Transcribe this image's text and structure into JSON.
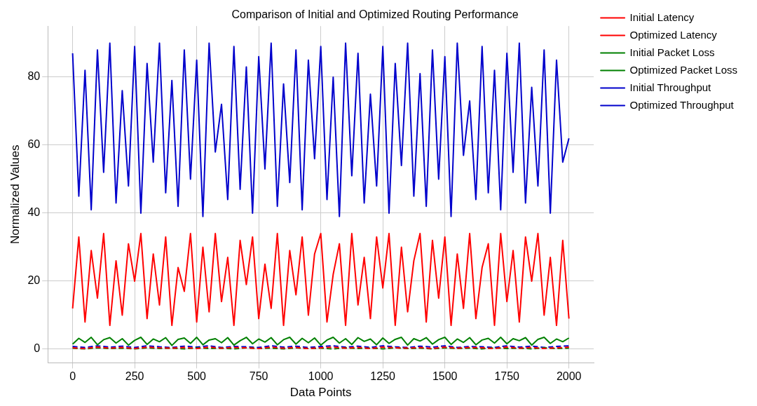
{
  "chart_data": {
    "type": "line",
    "title": "Comparison of Initial and Optimized Routing Performance",
    "xlabel": "Data Points",
    "ylabel": "Normalized Values",
    "xlim": [
      -100,
      2100
    ],
    "xticks": [
      0,
      250,
      500,
      750,
      1000,
      1250,
      1500,
      1750,
      2000
    ],
    "ylim": [
      -4,
      95
    ],
    "yticks": [
      0,
      20,
      40,
      60,
      80
    ],
    "grid": true,
    "legend": "top right",
    "marker": "none",
    "series": [
      {
        "name": "Initial Latency",
        "color": "#ff0000",
        "line_style": "dashed",
        "x": [
          0,
          50,
          100,
          150,
          200,
          250,
          300,
          350,
          400,
          450,
          500,
          550,
          600,
          650,
          700,
          750,
          800,
          850,
          900,
          950,
          1000,
          1050,
          1100,
          1150,
          1200,
          1250,
          1300,
          1350,
          1400,
          1450,
          1500,
          1550,
          1600,
          1650,
          1700,
          1750,
          1800,
          1850,
          1900,
          1950,
          2000
        ],
        "values": [
          0.4,
          0.2,
          0.6,
          0.3,
          0.5,
          0.2,
          0.6,
          0.4,
          0.3,
          0.5,
          0.2,
          0.6,
          0.3,
          0.5,
          0.4,
          0.2,
          0.6,
          0.3,
          0.5,
          0.2,
          0.4,
          0.6,
          0.3,
          0.5,
          0.2,
          0.6,
          0.4,
          0.3,
          0.5,
          0.2,
          0.6,
          0.3,
          0.5,
          0.4,
          0.2,
          0.6,
          0.3,
          0.5,
          0.2,
          0.4,
          0.6
        ]
      },
      {
        "name": "Optimized Latency",
        "color": "#ff0000",
        "line_style": "solid",
        "x": [
          0,
          25,
          50,
          75,
          100,
          125,
          150,
          175,
          200,
          225,
          250,
          275,
          300,
          325,
          350,
          375,
          400,
          425,
          450,
          475,
          500,
          525,
          550,
          575,
          600,
          625,
          650,
          675,
          700,
          725,
          750,
          775,
          800,
          825,
          850,
          875,
          900,
          925,
          950,
          975,
          1000,
          1025,
          1050,
          1075,
          1100,
          1125,
          1150,
          1175,
          1200,
          1225,
          1250,
          1275,
          1300,
          1325,
          1350,
          1375,
          1400,
          1425,
          1450,
          1475,
          1500,
          1525,
          1550,
          1575,
          1600,
          1625,
          1650,
          1675,
          1700,
          1725,
          1750,
          1775,
          1800,
          1825,
          1850,
          1875,
          1900,
          1925,
          1950,
          1975,
          2000
        ],
        "values": [
          12,
          33,
          8,
          29,
          15,
          34,
          7,
          26,
          10,
          31,
          20,
          34,
          9,
          28,
          13,
          33,
          7,
          24,
          17,
          34,
          8,
          30,
          11,
          34,
          14,
          27,
          7,
          32,
          19,
          33,
          9,
          25,
          12,
          34,
          7,
          29,
          16,
          33,
          10,
          28,
          34,
          8,
          22,
          31,
          7,
          34,
          13,
          27,
          9,
          33,
          18,
          34,
          7,
          30,
          11,
          26,
          34,
          8,
          32,
          15,
          33,
          7,
          28,
          12,
          34,
          9,
          24,
          31,
          7,
          34,
          14,
          29,
          8,
          33,
          20,
          34,
          10,
          27,
          7,
          32,
          9
        ]
      },
      {
        "name": "Initial Packet Loss",
        "color": "#008000",
        "line_style": "dashed",
        "x": [
          0,
          50,
          100,
          150,
          200,
          250,
          300,
          350,
          400,
          450,
          500,
          550,
          600,
          650,
          700,
          750,
          800,
          850,
          900,
          950,
          1000,
          1050,
          1100,
          1150,
          1200,
          1250,
          1300,
          1350,
          1400,
          1450,
          1500,
          1550,
          1600,
          1650,
          1700,
          1750,
          1800,
          1850,
          1900,
          1950,
          2000
        ],
        "values": [
          0.3,
          0.1,
          0.4,
          0.2,
          0.3,
          0.1,
          0.4,
          0.2,
          0.3,
          0.1,
          0.4,
          0.2,
          0.3,
          0.1,
          0.4,
          0.2,
          0.3,
          0.1,
          0.4,
          0.2,
          0.3,
          0.1,
          0.4,
          0.2,
          0.3,
          0.1,
          0.4,
          0.2,
          0.3,
          0.1,
          0.4,
          0.2,
          0.3,
          0.1,
          0.4,
          0.2,
          0.3,
          0.1,
          0.4,
          0.2,
          0.3
        ]
      },
      {
        "name": "Optimized Packet Loss",
        "color": "#008000",
        "line_style": "solid",
        "x": [
          0,
          25,
          50,
          75,
          100,
          125,
          150,
          175,
          200,
          225,
          250,
          275,
          300,
          325,
          350,
          375,
          400,
          425,
          450,
          475,
          500,
          525,
          550,
          575,
          600,
          625,
          650,
          675,
          700,
          725,
          750,
          775,
          800,
          825,
          850,
          875,
          900,
          925,
          950,
          975,
          1000,
          1025,
          1050,
          1075,
          1100,
          1125,
          1150,
          1175,
          1200,
          1225,
          1250,
          1275,
          1300,
          1325,
          1350,
          1375,
          1400,
          1425,
          1450,
          1475,
          1500,
          1525,
          1550,
          1575,
          1600,
          1625,
          1650,
          1675,
          1700,
          1725,
          1750,
          1775,
          1800,
          1825,
          1850,
          1875,
          1900,
          1925,
          1950,
          1975,
          2000
        ],
        "values": [
          1.5,
          3.2,
          2.0,
          3.5,
          1.3,
          2.8,
          3.4,
          1.8,
          3.1,
          1.2,
          2.6,
          3.5,
          1.4,
          3.0,
          2.2,
          3.4,
          1.1,
          2.9,
          3.3,
          1.7,
          3.5,
          1.3,
          2.7,
          3.1,
          1.9,
          3.4,
          1.2,
          2.5,
          3.5,
          1.6,
          3.0,
          2.1,
          3.4,
          1.3,
          2.8,
          3.5,
          1.5,
          3.2,
          1.9,
          3.3,
          1.2,
          2.7,
          3.5,
          1.8,
          3.1,
          1.4,
          3.4,
          2.3,
          3.0,
          1.3,
          3.3,
          1.7,
          2.9,
          3.5,
          1.2,
          3.1,
          2.4,
          3.4,
          1.5,
          2.8,
          3.5,
          1.4,
          3.0,
          2.0,
          3.4,
          1.3,
          2.7,
          3.2,
          1.8,
          3.5,
          1.6,
          3.1,
          2.5,
          3.4,
          1.2,
          2.9,
          3.5,
          1.7,
          3.0,
          2.2,
          3.3
        ]
      },
      {
        "name": "Initial Throughput",
        "color": "#0000cc",
        "line_style": "dashed",
        "x": [
          0,
          50,
          100,
          150,
          200,
          250,
          300,
          350,
          400,
          450,
          500,
          550,
          600,
          650,
          700,
          750,
          800,
          850,
          900,
          950,
          1000,
          1050,
          1100,
          1150,
          1200,
          1250,
          1300,
          1350,
          1400,
          1450,
          1500,
          1550,
          1600,
          1650,
          1700,
          1750,
          1800,
          1850,
          1900,
          1950,
          2000
        ],
        "values": [
          0.8,
          0.5,
          1.0,
          0.6,
          0.9,
          0.5,
          1.0,
          0.7,
          0.5,
          0.9,
          0.6,
          1.0,
          0.5,
          0.8,
          0.7,
          0.5,
          1.0,
          0.6,
          0.9,
          0.5,
          0.8,
          1.0,
          0.6,
          0.9,
          0.5,
          1.0,
          0.7,
          0.5,
          0.9,
          0.6,
          1.0,
          0.5,
          0.8,
          0.7,
          0.5,
          1.0,
          0.6,
          0.9,
          0.5,
          0.8,
          1.0
        ]
      },
      {
        "name": "Optimized Throughput",
        "color": "#0000cc",
        "line_style": "solid",
        "x": [
          0,
          25,
          50,
          75,
          100,
          125,
          150,
          175,
          200,
          225,
          250,
          275,
          300,
          325,
          350,
          375,
          400,
          425,
          450,
          475,
          500,
          525,
          550,
          575,
          600,
          625,
          650,
          675,
          700,
          725,
          750,
          775,
          800,
          825,
          850,
          875,
          900,
          925,
          950,
          975,
          1000,
          1025,
          1050,
          1075,
          1100,
          1125,
          1150,
          1175,
          1200,
          1225,
          1250,
          1275,
          1300,
          1325,
          1350,
          1375,
          1400,
          1425,
          1450,
          1475,
          1500,
          1525,
          1550,
          1575,
          1600,
          1625,
          1650,
          1675,
          1700,
          1725,
          1750,
          1775,
          1800,
          1825,
          1850,
          1875,
          1900,
          1925,
          1950,
          1975,
          2000
        ],
        "values": [
          87,
          45,
          82,
          41,
          88,
          52,
          90,
          43,
          76,
          48,
          89,
          40,
          84,
          55,
          90,
          46,
          79,
          42,
          88,
          50,
          85,
          39,
          90,
          58,
          72,
          44,
          89,
          47,
          83,
          40,
          86,
          53,
          90,
          42,
          78,
          49,
          88,
          41,
          85,
          56,
          89,
          44,
          80,
          39,
          90,
          51,
          87,
          43,
          75,
          48,
          89,
          40,
          84,
          54,
          90,
          45,
          81,
          42,
          88,
          50,
          86,
          39,
          90,
          57,
          73,
          44,
          89,
          46,
          82,
          41,
          87,
          52,
          90,
          43,
          77,
          48,
          88,
          40,
          85,
          55,
          62
        ]
      }
    ]
  }
}
